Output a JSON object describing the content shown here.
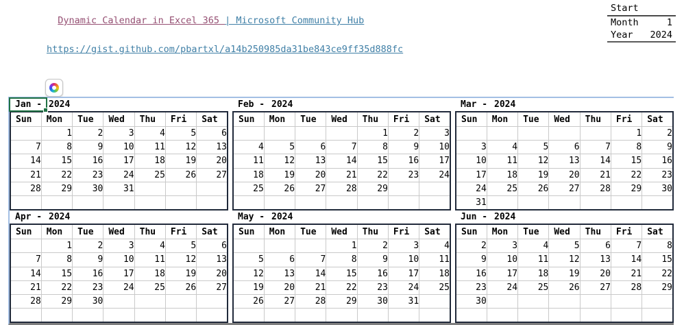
{
  "header": {
    "title_link": {
      "visited_part": "Dynamic Calendar in Excel 365 ",
      "hub_part": "| Microsoft Community Hub"
    },
    "url": "https://gist.github.com/pbartxl/a14b250985da31be843ce9ff35d888fc"
  },
  "start_panel": {
    "title": "Start",
    "rows": [
      {
        "label": "Month",
        "value": "1"
      },
      {
        "label": "Year",
        "value": "2024"
      }
    ]
  },
  "icons": {
    "copilot": "copilot-logo"
  },
  "colors": {
    "link_visited": "#954F72",
    "link": "#3F7FA6",
    "selection_green": "#1F7244",
    "outer_border_blue": "#A3BFE4",
    "month_block_border": "#20293A",
    "gridline": "#C9C9C9",
    "bottom_border_gray": "#7F7F7F"
  },
  "calendar": {
    "day_headers": [
      "Sun",
      "Mon",
      "Tue",
      "Wed",
      "Thu",
      "Fri",
      "Sat"
    ],
    "months": [
      {
        "id": "jan",
        "name_cell": "Jan -",
        "year_cell": "2024",
        "selected": true,
        "weeks": [
          [
            "",
            "1",
            "2",
            "3",
            "4",
            "5",
            "6"
          ],
          [
            "7",
            "8",
            "9",
            "10",
            "11",
            "12",
            "13"
          ],
          [
            "14",
            "15",
            "16",
            "17",
            "18",
            "19",
            "20"
          ],
          [
            "21",
            "22",
            "23",
            "24",
            "25",
            "26",
            "27"
          ],
          [
            "28",
            "29",
            "30",
            "31",
            "",
            "",
            ""
          ],
          [
            "",
            "",
            "",
            "",
            "",
            "",
            ""
          ]
        ]
      },
      {
        "id": "feb",
        "name_cell": "Feb -",
        "year_cell": "2024",
        "selected": false,
        "weeks": [
          [
            "",
            "",
            "",
            "",
            "1",
            "2",
            "3"
          ],
          [
            "4",
            "5",
            "6",
            "7",
            "8",
            "9",
            "10"
          ],
          [
            "11",
            "12",
            "13",
            "14",
            "15",
            "16",
            "17"
          ],
          [
            "18",
            "19",
            "20",
            "21",
            "22",
            "23",
            "24"
          ],
          [
            "25",
            "26",
            "27",
            "28",
            "29",
            "",
            ""
          ],
          [
            "",
            "",
            "",
            "",
            "",
            "",
            ""
          ]
        ]
      },
      {
        "id": "mar",
        "name_cell": "Mar -",
        "year_cell": "2024",
        "selected": false,
        "weeks": [
          [
            "",
            "",
            "",
            "",
            "",
            "1",
            "2"
          ],
          [
            "3",
            "4",
            "5",
            "6",
            "7",
            "8",
            "9"
          ],
          [
            "10",
            "11",
            "12",
            "13",
            "14",
            "15",
            "16"
          ],
          [
            "17",
            "18",
            "19",
            "20",
            "21",
            "22",
            "23"
          ],
          [
            "24",
            "25",
            "26",
            "27",
            "28",
            "29",
            "30"
          ],
          [
            "31",
            "",
            "",
            "",
            "",
            "",
            ""
          ]
        ]
      },
      {
        "id": "apr",
        "name_cell": "Apr -",
        "year_cell": "2024",
        "selected": false,
        "weeks": [
          [
            "",
            "1",
            "2",
            "3",
            "4",
            "5",
            "6"
          ],
          [
            "7",
            "8",
            "9",
            "10",
            "11",
            "12",
            "13"
          ],
          [
            "14",
            "15",
            "16",
            "17",
            "18",
            "19",
            "20"
          ],
          [
            "21",
            "22",
            "23",
            "24",
            "25",
            "26",
            "27"
          ],
          [
            "28",
            "29",
            "30",
            "",
            "",
            "",
            ""
          ],
          [
            "",
            "",
            "",
            "",
            "",
            "",
            ""
          ]
        ]
      },
      {
        "id": "may",
        "name_cell": "May -",
        "year_cell": "2024",
        "selected": false,
        "weeks": [
          [
            "",
            "",
            "",
            "1",
            "2",
            "3",
            "4"
          ],
          [
            "5",
            "6",
            "7",
            "8",
            "9",
            "10",
            "11"
          ],
          [
            "12",
            "13",
            "14",
            "15",
            "16",
            "17",
            "18"
          ],
          [
            "19",
            "20",
            "21",
            "22",
            "23",
            "24",
            "25"
          ],
          [
            "26",
            "27",
            "28",
            "29",
            "30",
            "31",
            ""
          ],
          [
            "",
            "",
            "",
            "",
            "",
            "",
            ""
          ]
        ]
      },
      {
        "id": "jun",
        "name_cell": "Jun -",
        "year_cell": "2024",
        "selected": false,
        "weeks": [
          [
            "2",
            "3",
            "4",
            "5",
            "6",
            "7",
            "8"
          ],
          [
            "9",
            "10",
            "11",
            "12",
            "13",
            "14",
            "15"
          ],
          [
            "16",
            "17",
            "18",
            "19",
            "20",
            "21",
            "22"
          ],
          [
            "23",
            "24",
            "25",
            "26",
            "27",
            "28",
            "29"
          ],
          [
            "30",
            "",
            "",
            "",
            "",
            "",
            ""
          ],
          [
            "",
            "",
            "",
            "",
            "",
            "",
            ""
          ]
        ]
      }
    ]
  }
}
